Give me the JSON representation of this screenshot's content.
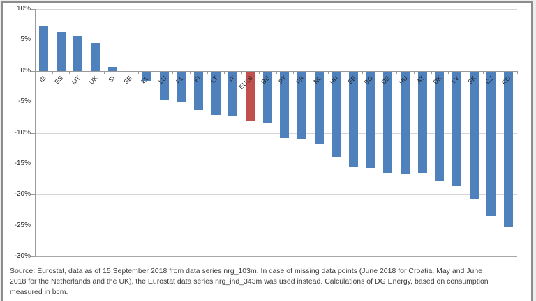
{
  "chart_data": {
    "type": "bar",
    "title": "",
    "xlabel": "",
    "ylabel": "",
    "categories": [
      "IE",
      "ES",
      "MT",
      "UK",
      "SI",
      "SE",
      "EL",
      "LU",
      "PL",
      "FI",
      "LT",
      "IT",
      "EU28",
      "BE",
      "PT",
      "FR",
      "NL",
      "HR",
      "EE",
      "BG",
      "DE",
      "HU",
      "AT",
      "DK",
      "LV",
      "SK",
      "CZ",
      "RO"
    ],
    "values": [
      7.2,
      6.3,
      5.7,
      4.5,
      0.6,
      0.0,
      -1.5,
      -4.7,
      -5.0,
      -6.2,
      -7.0,
      -7.1,
      -8.0,
      -8.2,
      -10.7,
      -10.8,
      -11.7,
      -13.9,
      -15.4,
      -15.6,
      -16.5,
      -16.6,
      -16.5,
      -17.7,
      -18.5,
      -20.6,
      -23.4,
      -25.1
    ],
    "highlight_category": "EU28",
    "bar_color": "#4F81BD",
    "highlight_color": "#C0504D",
    "ylim": [
      -30,
      10
    ],
    "ytick_step": 5,
    "ytick_labels": [
      "10%",
      "5%",
      "0%",
      "-5%",
      "-10%",
      "-15%",
      "-20%",
      "-25%",
      "-30%"
    ],
    "grid": true,
    "legend": "none"
  },
  "source_note": {
    "lines": [
      "Source: Eurostat, data as of 15 September 2018 from data series nrg_103m. In case of missing data points (June 2018 for Croatia, May and June",
      "2018 for the Netherlands and the UK), the Eurostat data series nrg_ind_343m was used instead. Calculations of DG Energy, based on consumption",
      "measured in bcm."
    ]
  }
}
